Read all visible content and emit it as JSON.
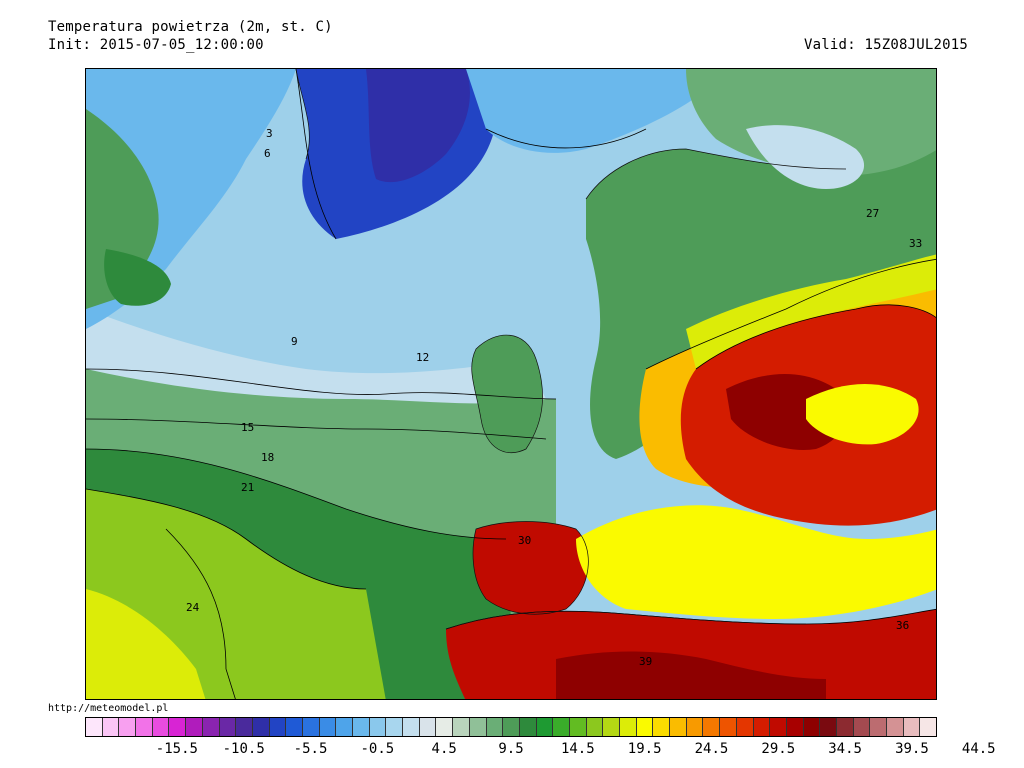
{
  "header": {
    "title": "Temperatura powietrza (2m, st. C)",
    "init": "Init: 2015-07-05_12:00:00",
    "valid": "Valid: 15Z08JUL2015"
  },
  "source": "http://meteomodel.pl",
  "colorbar": {
    "swatches": [
      "#fde6fb",
      "#fbc6f6",
      "#f8a0f0",
      "#f272e8",
      "#e94ce0",
      "#d824d4",
      "#b01cbc",
      "#8a24b0",
      "#6a28a6",
      "#4a2a9c",
      "#2f2fa8",
      "#2244c4",
      "#1f5ad6",
      "#2a72e0",
      "#3a8ce6",
      "#4ea4ea",
      "#6ab8ec",
      "#8ac8ec",
      "#a8d6ee",
      "#c4dfee",
      "#d9e3ea",
      "#e6ece6",
      "#b9d4bc",
      "#90c098",
      "#6aae76",
      "#4e9c58",
      "#2e8a3c",
      "#1e9a32",
      "#3aac2a",
      "#62bc22",
      "#8cc81e",
      "#b4d814",
      "#dcec08",
      "#fafa00",
      "#fadc00",
      "#fabc00",
      "#f89a00",
      "#f47800",
      "#ee5400",
      "#e43600",
      "#d41c00",
      "#c00a00",
      "#a80000",
      "#8e0000",
      "#7a0a10",
      "#8c2a30",
      "#a44a50",
      "#bc6c70",
      "#d49294",
      "#e8bcbe",
      "#f6e6e6"
    ],
    "tick_labels": [
      "-15.5",
      "-10.5",
      "-5.5",
      "-0.5",
      "4.5",
      "9.5",
      "14.5",
      "19.5",
      "24.5",
      "29.5",
      "34.5",
      "39.5",
      "44.5"
    ]
  },
  "map": {
    "contour_labels": [
      "3",
      "6",
      "9",
      "12",
      "15",
      "18",
      "21",
      "24",
      "27",
      "30",
      "33",
      "36",
      "39"
    ]
  },
  "colors": {
    "cold": "#2f2fa8",
    "cool": "#9ed0ea",
    "mild": "#c4dfee",
    "green": "#2e8a3c",
    "yellow": "#fafa00",
    "orange": "#f89a00",
    "red": "#d41c00",
    "darkred": "#8e0000"
  }
}
